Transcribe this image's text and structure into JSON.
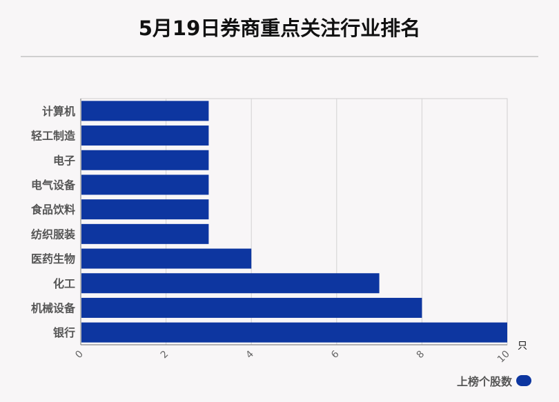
{
  "title": "5月19日券商重点关注行业排名",
  "chart_data": {
    "type": "bar",
    "orientation": "horizontal",
    "categories": [
      "计算机",
      "轻工制造",
      "电子",
      "电气设备",
      "食品饮料",
      "纺织服装",
      "医药生物",
      "化工",
      "机械设备",
      "银行"
    ],
    "series": [
      {
        "name": "上榜个股数",
        "values": [
          3,
          3,
          3,
          3,
          3,
          3,
          4,
          7,
          8,
          10
        ]
      }
    ],
    "xlim": [
      0,
      10
    ],
    "xticks": [
      "0",
      "2",
      "4",
      "6",
      "8",
      "10"
    ],
    "xunit": "只",
    "grid": true,
    "legend_position": "bottom-right",
    "bar_color": "#0d36a0"
  }
}
